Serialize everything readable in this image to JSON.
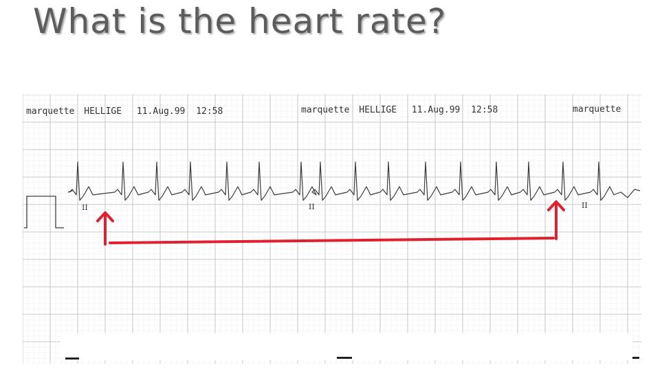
{
  "slide": {
    "title": "What is the heart rate?"
  },
  "strip": {
    "headers": [
      {
        "brand": "marquette",
        "model": "HELLIGE",
        "date": "11.Aug.99",
        "time": "12:58"
      },
      {
        "brand": "marquette",
        "model": "HELLIGE",
        "date": "11.Aug.99",
        "time": "12:58"
      },
      {
        "brand": "marquette"
      }
    ],
    "lead_labels": [
      "II",
      "II",
      "II"
    ]
  },
  "annotation": {
    "color": "#e0202f",
    "icons": [
      "arrow-up-icon",
      "arrow-up-icon"
    ]
  },
  "colors": {
    "grid_minor": "#dcdcdc",
    "grid_major": "#b8b8b8",
    "trace": "#3a3a3a"
  }
}
